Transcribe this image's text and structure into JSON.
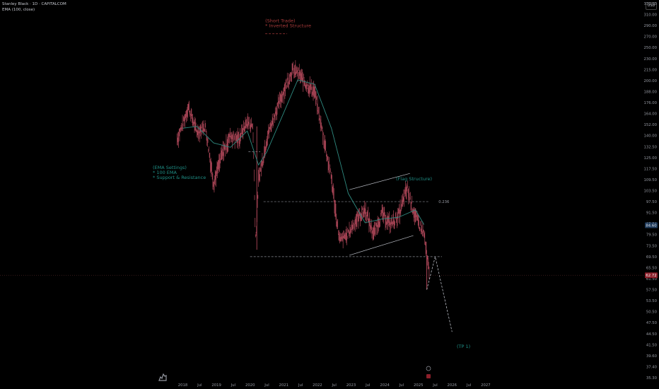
{
  "header": {
    "symbol_line": "Stanley Black · 1D · CAPITALCOM",
    "indicator_line": "EMA (100, close)"
  },
  "currency": "USD",
  "colors": {
    "background": "#000000",
    "candle": "#b0485a",
    "ema": "#2f8a80",
    "level_line": "#8a8d95",
    "annotation_red": "#a83a3a",
    "annotation_teal": "#1f8f86",
    "trend_line": "#b9bcc4"
  },
  "price_axis": {
    "ticks": [
      "330.00",
      "310.00",
      "290.00",
      "270.00",
      "250.00",
      "230.00",
      "215.00",
      "200.00",
      "188.00",
      "176.00",
      "164.00",
      "152.00",
      "140.00",
      "132.50",
      "125.00",
      "117.50",
      "109.50",
      "103.50",
      "97.50",
      "91.50",
      "85.50",
      "79.50",
      "73.50",
      "69.50",
      "65.50",
      "61.50",
      "57.50",
      "53.50",
      "50.50",
      "47.50",
      "44.50",
      "41.50",
      "39.60",
      "37.40",
      "35.30"
    ],
    "current_price": "84.60",
    "last_price": "62.72"
  },
  "time_axis": {
    "ticks": [
      "2018",
      "Jul",
      "2019",
      "Jul",
      "2020",
      "Jul",
      "2021",
      "Jul",
      "2022",
      "Jul",
      "2023",
      "Jul",
      "2024",
      "Jul",
      "2025",
      "Jul",
      "2026",
      "Jul",
      "2027"
    ]
  },
  "annotations": {
    "short_trade": [
      "(Short Trade)",
      "* Inverted Structure"
    ],
    "ema_settings": [
      "(EMA Settings)",
      "* 100 EMA",
      "* Support & Resistance"
    ],
    "flag": "(Flag Structure)",
    "tp": "(TP 1)",
    "level_label": "0.236"
  },
  "chart_data": {
    "type": "line",
    "title": "",
    "xlabel": "",
    "ylabel": "",
    "series": [
      {
        "name": "",
        "x": [
          "2017-11",
          "2018-01",
          "2018-03",
          "2018-06",
          "2018-09",
          "2018-12",
          "2019-03",
          "2019-06",
          "2019-09",
          "2019-12",
          "2020-02",
          "2020-03",
          "2020-04",
          "2020-07",
          "2020-10",
          "2021-01",
          "2021-04",
          "2021-06",
          "2021-09",
          "2021-12",
          "2022-03",
          "2022-06",
          "2022-09",
          "2022-12",
          "2023-03",
          "2023-06",
          "2023-09",
          "2023-12",
          "2024-03",
          "2024-06",
          "2024-09",
          "2024-12",
          "2025-03",
          "2025-04",
          "2025-05"
        ],
        "values": [
          138,
          152,
          172,
          144,
          150,
          108,
          127,
          141,
          138,
          155,
          150,
          76,
          110,
          139,
          165,
          189,
          213,
          211,
          196,
          188,
          142,
          111,
          76,
          80,
          88,
          93,
          80,
          91,
          85,
          90,
          105,
          89,
          80,
          69,
          62.7
        ]
      },
      {
        "name": "EMA (100, close)",
        "x": [
          "2018-01",
          "2018-06",
          "2018-12",
          "2019-06",
          "2019-12",
          "2020-04",
          "2020-07",
          "2021-01",
          "2021-06",
          "2021-12",
          "2022-06",
          "2022-12",
          "2023-06",
          "2023-12",
          "2024-06",
          "2024-12",
          "2025-03"
        ],
        "values": [
          148,
          150,
          135,
          132,
          145,
          120,
          129,
          165,
          201,
          196,
          148,
          102,
          86,
          88,
          89,
          93,
          85
        ]
      }
    ],
    "projection": {
      "x": [
        "2025-04",
        "2025-07",
        "2026-01"
      ],
      "values": [
        57.5,
        69.5,
        45.0
      ]
    },
    "levels": [
      97.5,
      69.5
    ],
    "flag_channel": {
      "upper": [
        [
          2022.95,
          104
        ],
        [
          2024.75,
          114
        ]
      ],
      "lower": [
        [
          2022.95,
          70
        ],
        [
          2024.85,
          79
        ]
      ]
    },
    "y_scale": "log",
    "ylim": [
      35.3,
      330
    ],
    "grid": false
  }
}
